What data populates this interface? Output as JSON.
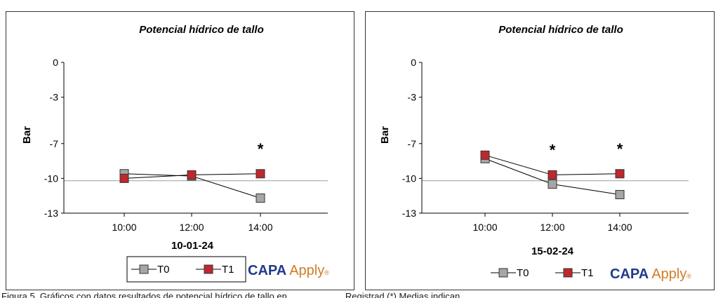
{
  "chart_data": [
    {
      "type": "line",
      "title": "Potencial hídrico de tallo",
      "ylabel": "Bar",
      "xlabel": "10-01-24",
      "categories": [
        "10:00",
        "12:00",
        "14:00"
      ],
      "y_ticks": [
        "0",
        "-3",
        "-7",
        "-10",
        "-13"
      ],
      "ylim": [
        -13,
        0
      ],
      "reference_line": -10.2,
      "grid": false,
      "legend_position": "bottom",
      "series": [
        {
          "name": "T0",
          "values": [
            -9.6,
            -9.8,
            -11.7
          ],
          "color": "#a6a6a6"
        },
        {
          "name": "T1",
          "values": [
            -10.0,
            -9.7,
            -9.6
          ],
          "color": "#c0272d"
        }
      ],
      "annotations": [
        {
          "text": "*",
          "category": "14:00"
        }
      ]
    },
    {
      "type": "line",
      "title": "Potencial hídrico de tallo",
      "ylabel": "Bar",
      "xlabel": "15-02-24",
      "categories": [
        "10:00",
        "12:00",
        "14:00"
      ],
      "y_ticks": [
        "0",
        "-3",
        "-7",
        "-10",
        "-13"
      ],
      "ylim": [
        -13,
        0
      ],
      "reference_line": -10.2,
      "grid": false,
      "legend_position": "bottom",
      "series": [
        {
          "name": "T0",
          "values": [
            -8.3,
            -10.5,
            -11.4
          ],
          "color": "#a6a6a6"
        },
        {
          "name": "T1",
          "values": [
            -8.0,
            -9.7,
            -9.6
          ],
          "color": "#c0272d"
        }
      ],
      "annotations": [
        {
          "text": "*",
          "category": "12:00"
        },
        {
          "text": "*",
          "category": "14:00"
        }
      ]
    }
  ],
  "logo": {
    "part1": "CAPA",
    "part2": "Apply",
    "mark": "®",
    "color1": "#1f3b8a",
    "color2": "#d07c27"
  },
  "caption": "Figura 5. Gráficos con datos resultados de potencial hídrico de tallo en...................... Registrad (*) Medias indican..."
}
